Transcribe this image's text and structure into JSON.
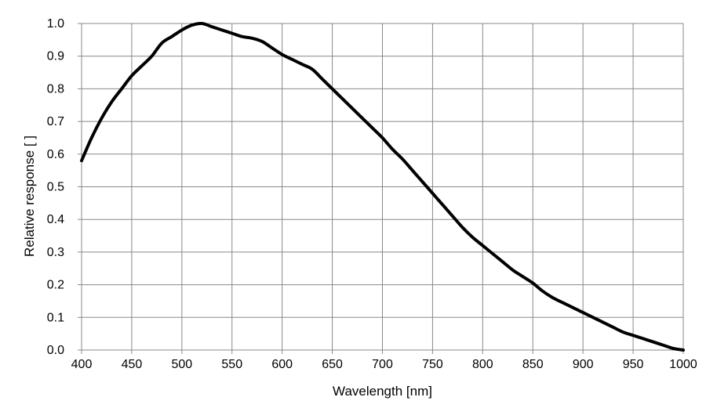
{
  "chart_data": {
    "type": "line",
    "title": "",
    "xlabel": "Wavelength [nm]",
    "ylabel": "Relative response [ ]",
    "xlim": [
      400,
      1000
    ],
    "ylim": [
      0.0,
      1.0
    ],
    "xticks": [
      "400",
      "450",
      "500",
      "550",
      "600",
      "650",
      "700",
      "750",
      "800",
      "850",
      "900",
      "950",
      "1000"
    ],
    "yticks": [
      "0.0",
      "0.1",
      "0.2",
      "0.3",
      "0.4",
      "0.5",
      "0.6",
      "0.7",
      "0.8",
      "0.9",
      "1.0"
    ],
    "grid": true,
    "legend": "none",
    "line_color": "#000000",
    "grid_color": "#888888",
    "series": [
      {
        "x": [
          400,
          410,
          420,
          430,
          440,
          450,
          460,
          470,
          480,
          490,
          500,
          510,
          520,
          530,
          540,
          550,
          560,
          570,
          580,
          590,
          600,
          610,
          620,
          630,
          640,
          650,
          660,
          670,
          680,
          690,
          700,
          710,
          720,
          730,
          740,
          750,
          760,
          770,
          780,
          790,
          800,
          810,
          820,
          830,
          840,
          850,
          860,
          870,
          880,
          890,
          900,
          910,
          920,
          930,
          940,
          950,
          960,
          970,
          980,
          990,
          1000
        ],
        "y": [
          0.58,
          0.65,
          0.71,
          0.76,
          0.8,
          0.84,
          0.87,
          0.9,
          0.94,
          0.96,
          0.98,
          0.995,
          1.0,
          0.99,
          0.98,
          0.97,
          0.96,
          0.955,
          0.945,
          0.925,
          0.905,
          0.89,
          0.875,
          0.86,
          0.83,
          0.8,
          0.77,
          0.74,
          0.71,
          0.68,
          0.65,
          0.615,
          0.585,
          0.55,
          0.515,
          0.48,
          0.445,
          0.41,
          0.375,
          0.345,
          0.32,
          0.295,
          0.27,
          0.245,
          0.225,
          0.205,
          0.18,
          0.16,
          0.145,
          0.13,
          0.115,
          0.1,
          0.085,
          0.07,
          0.055,
          0.045,
          0.035,
          0.025,
          0.015,
          0.005,
          0.0
        ]
      }
    ]
  }
}
